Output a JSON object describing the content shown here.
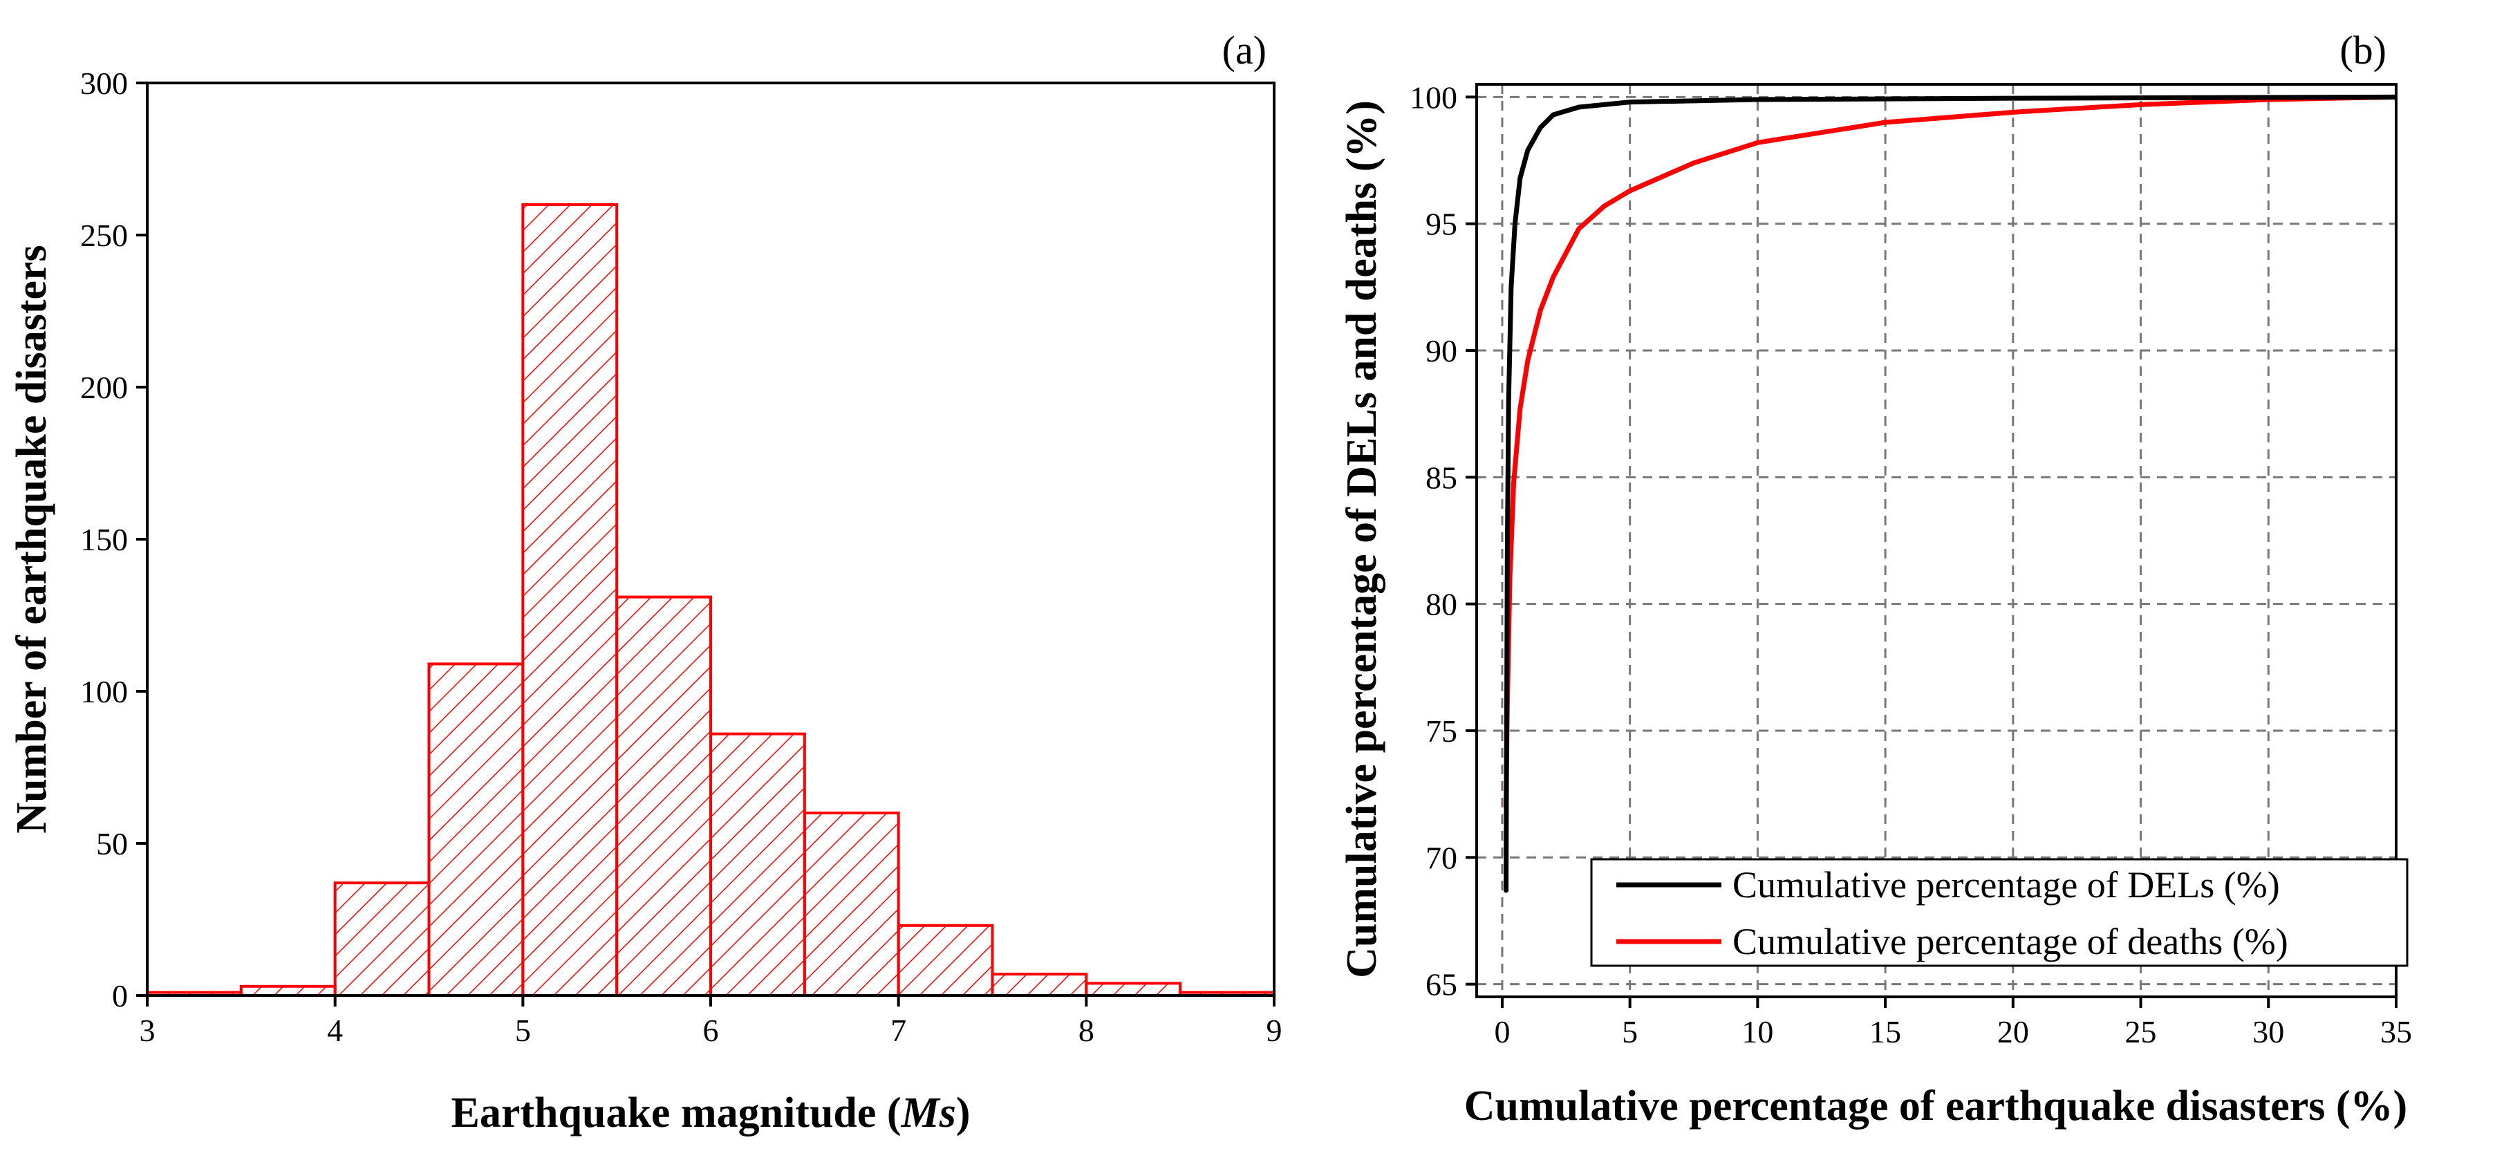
{
  "chart_data": [
    {
      "type": "bar",
      "subtype": "histogram",
      "panel_label": "(a)",
      "xlabel_prefix": "Earthquake magnitude (",
      "xlabel_var": "Ms",
      "xlabel_suffix": ")",
      "ylabel": "Number of earthquake disasters",
      "bin_edges": [
        3,
        3.5,
        4,
        4.5,
        5,
        5.5,
        6,
        6.5,
        7,
        7.5,
        8,
        8.5,
        9
      ],
      "values": [
        1,
        3,
        37,
        109,
        260,
        131,
        86,
        60,
        23,
        7,
        4,
        1
      ],
      "xlim": [
        3,
        9
      ],
      "ylim": [
        0,
        300
      ],
      "xticks": [
        3,
        4,
        5,
        6,
        7,
        8,
        9
      ],
      "yticks": [
        0,
        50,
        100,
        150,
        200,
        250,
        300
      ],
      "bar_color": "#ff0000",
      "fill_pattern": "diagonal hatch",
      "grid": false
    },
    {
      "type": "line",
      "panel_label": "(b)",
      "xlabel": "Cumulative percentage of earthquake disasters (%)",
      "ylabel": "Cumulative percentage of DELs and deaths (%)",
      "xlim": [
        -1,
        35
      ],
      "ylim": [
        64.5,
        100.5
      ],
      "xticks": [
        0,
        5,
        10,
        15,
        20,
        25,
        30,
        35
      ],
      "yticks": [
        65,
        70,
        75,
        80,
        85,
        90,
        95,
        100
      ],
      "grid": true,
      "grid_style": "dashed",
      "legend_position": "bottom-right",
      "series": [
        {
          "name": "Cumulative percentage of DELs (%)",
          "color": "#000000",
          "x": [
            0.15,
            0.2,
            0.25,
            0.35,
            0.5,
            0.7,
            1.0,
            1.5,
            2.0,
            3.0,
            5.0,
            10.0,
            20.0,
            35.0
          ],
          "y": [
            68.7,
            82.0,
            88.0,
            92.5,
            95.0,
            96.8,
            97.9,
            98.8,
            99.3,
            99.6,
            99.8,
            99.9,
            99.95,
            100.0
          ]
        },
        {
          "name": "Cumulative percentage of deaths (%)",
          "color": "#ff0000",
          "x": [
            0.15,
            0.2,
            0.3,
            0.45,
            0.7,
            1.0,
            1.5,
            2.0,
            3.0,
            4.0,
            5.0,
            7.5,
            10.0,
            15.0,
            20.0,
            25.0,
            30.0,
            35.0
          ],
          "y": [
            72.0,
            76.0,
            81.0,
            84.8,
            87.7,
            89.6,
            91.6,
            92.9,
            94.8,
            95.7,
            96.3,
            97.4,
            98.2,
            99.0,
            99.4,
            99.7,
            99.9,
            100.0
          ]
        }
      ]
    }
  ]
}
